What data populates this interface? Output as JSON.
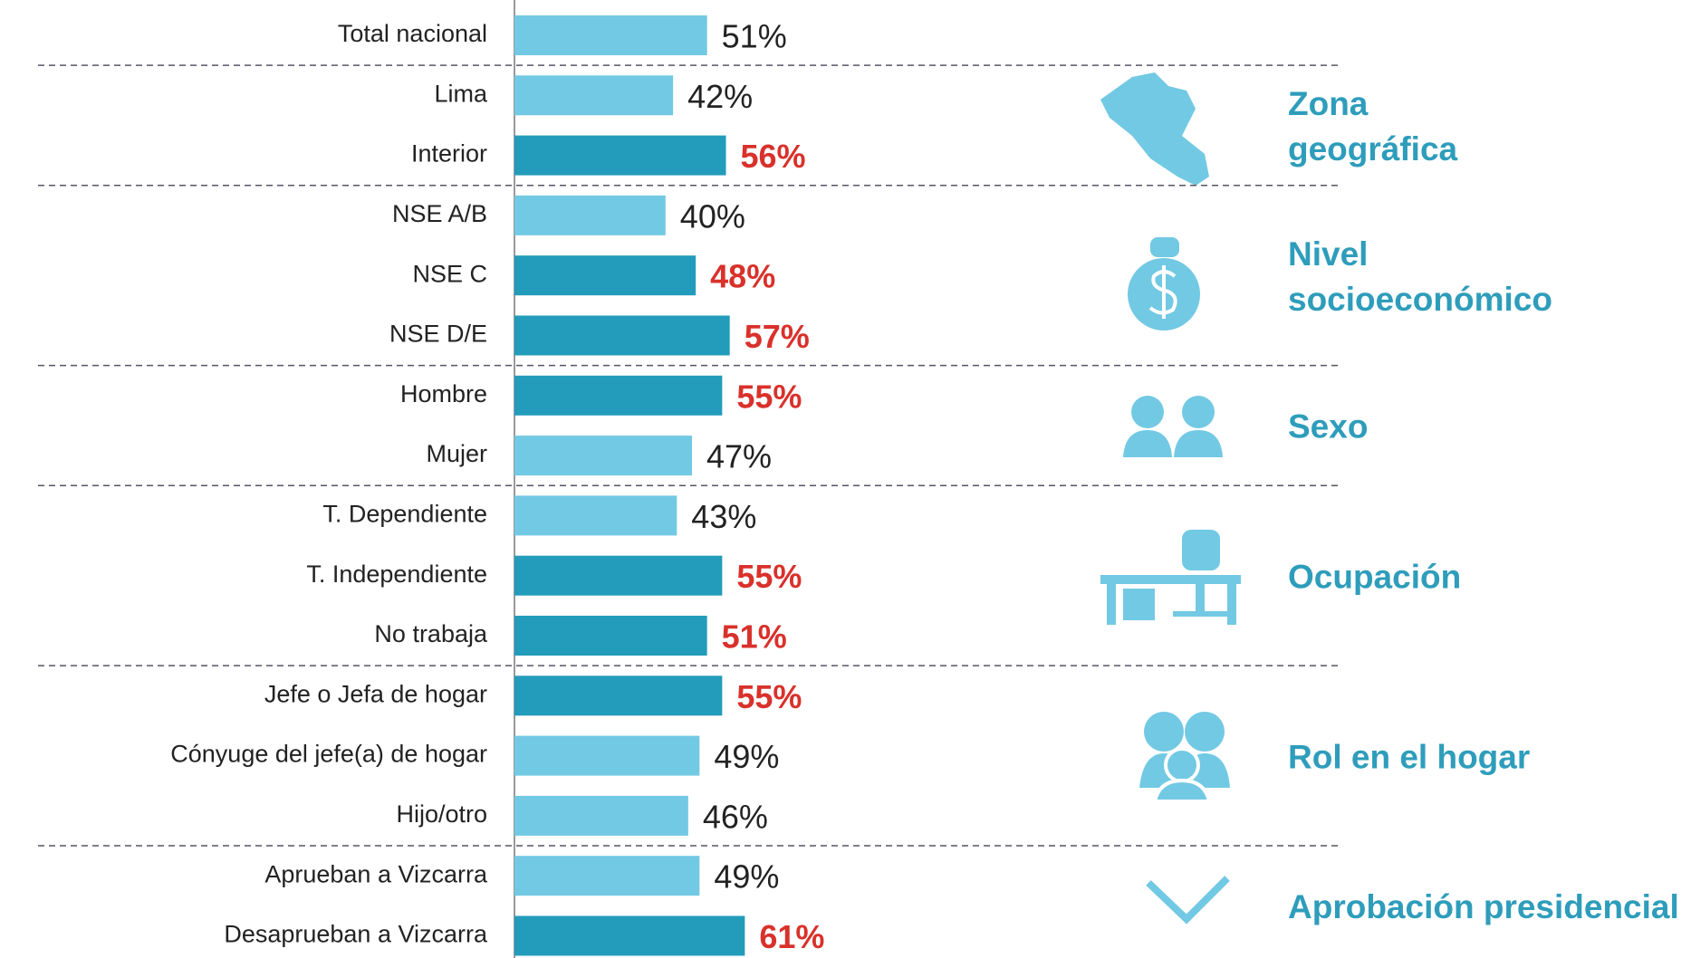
{
  "chart_data": {
    "type": "bar",
    "orientation": "horizontal",
    "categories": [
      "Total nacional",
      "Lima",
      "Interior",
      "NSE A/B",
      "NSE C",
      "NSE D/E",
      "Hombre",
      "Mujer",
      "T. Dependiente",
      "T. Independiente",
      "No trabaja",
      "Jefe o Jefa de hogar",
      "Cónyuge del jefe(a) de hogar",
      "Hijo/otro",
      "Aprueban a Vizcarra",
      "Desaprueban a Vizcarra"
    ],
    "values": [
      51,
      42,
      56,
      40,
      48,
      57,
      55,
      47,
      43,
      55,
      51,
      55,
      49,
      46,
      49,
      61
    ],
    "value_labels": [
      "51%",
      "42%",
      "56%",
      "40%",
      "48%",
      "57%",
      "55%",
      "47%",
      "43%",
      "55%",
      "51%",
      "55%",
      "49%",
      "46%",
      "49%",
      "61%"
    ],
    "colors": [
      "#72c9e3",
      "#72c9e3",
      "#239cbb",
      "#72c9e3",
      "#239cbb",
      "#239cbb",
      "#239cbb",
      "#72c9e3",
      "#72c9e3",
      "#239cbb",
      "#239cbb",
      "#239cbb",
      "#72c9e3",
      "#72c9e3",
      "#72c9e3",
      "#239cbb"
    ],
    "label_colors": [
      "#222222",
      "#222222",
      "#d9312b",
      "#222222",
      "#d9312b",
      "#d9312b",
      "#d9312b",
      "#222222",
      "#222222",
      "#d9312b",
      "#d9312b",
      "#d9312b",
      "#222222",
      "#222222",
      "#222222",
      "#d9312b"
    ],
    "xlim": [
      0,
      100
    ],
    "groups": [
      {
        "name": [
          "Zona",
          "geográfica"
        ],
        "size": 2
      },
      {
        "name": [
          "Nivel",
          "socioeconómico"
        ],
        "size": 3
      },
      {
        "name": [
          "Sexo"
        ],
        "size": 2
      },
      {
        "name": [
          "Ocupación"
        ],
        "size": 3
      },
      {
        "name": [
          "Rol en el hogar"
        ],
        "size": 3
      },
      {
        "name": [
          "Aprobación presidencial"
        ],
        "size": 2
      }
    ]
  }
}
